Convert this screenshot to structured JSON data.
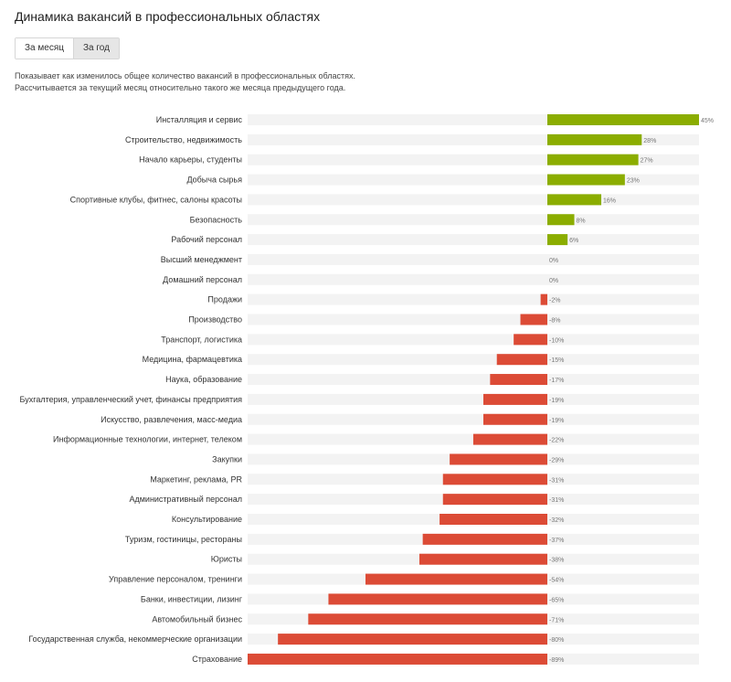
{
  "header": {
    "title": "Динамика вакансий в профессиональных областях",
    "tabs": [
      {
        "label": "За месяц",
        "active": false
      },
      {
        "label": "За год",
        "active": true
      }
    ],
    "description_line1": "Показывает как изменилось общее количество вакансий в профессиональных областях.",
    "description_line2": "Рассчитывается за текущий месяц относительно такого же месяца предыдущего года."
  },
  "colors": {
    "positive": "#8bad00",
    "negative": "#dc4b36",
    "track": "#f3f3f3"
  },
  "chart_data": {
    "type": "bar",
    "orientation": "horizontal",
    "categories": [
      "Инсталляция и сервис",
      "Строительство, недвижимость",
      "Начало карьеры, студенты",
      "Добыча сырья",
      "Спортивные клубы, фитнес, салоны красоты",
      "Безопасность",
      "Рабочий персонал",
      "Высший менеджмент",
      "Домашний персонал",
      "Продажи",
      "Производство",
      "Транспорт, логистика",
      "Медицина, фармацевтика",
      "Наука, образование",
      "Бухгалтерия, управленческий учет, финансы предприятия",
      "Искусство, развлечения, масс-медиа",
      "Информационные технологии, интернет, телеком",
      "Закупки",
      "Маркетинг, реклама, PR",
      "Административный персонал",
      "Консультирование",
      "Туризм, гостиницы, рестораны",
      "Юристы",
      "Управление персоналом, тренинги",
      "Банки, инвестиции, лизинг",
      "Автомобильный бизнес",
      "Государственная служба, некоммерческие организации",
      "Страхование"
    ],
    "values": [
      45,
      28,
      27,
      23,
      16,
      8,
      6,
      0,
      0,
      -2,
      -8,
      -10,
      -15,
      -17,
      -19,
      -19,
      -22,
      -29,
      -31,
      -31,
      -32,
      -37,
      -38,
      -54,
      -65,
      -71,
      -80,
      -89
    ],
    "value_labels": [
      "45%",
      "28%",
      "27%",
      "23%",
      "16%",
      "8%",
      "6%",
      "0%",
      "0%",
      "-2%",
      "-8%",
      "-10%",
      "-15%",
      "-17%",
      "-19%",
      "-19%",
      "-22%",
      "-29%",
      "-31%",
      "-31%",
      "-32%",
      "-37%",
      "-38%",
      "-54%",
      "-65%",
      "-71%",
      "-80%",
      "-89%"
    ],
    "xlim": [
      -89,
      45
    ],
    "title": "",
    "xlabel": "",
    "ylabel": "",
    "grid": false,
    "legend": "none"
  }
}
